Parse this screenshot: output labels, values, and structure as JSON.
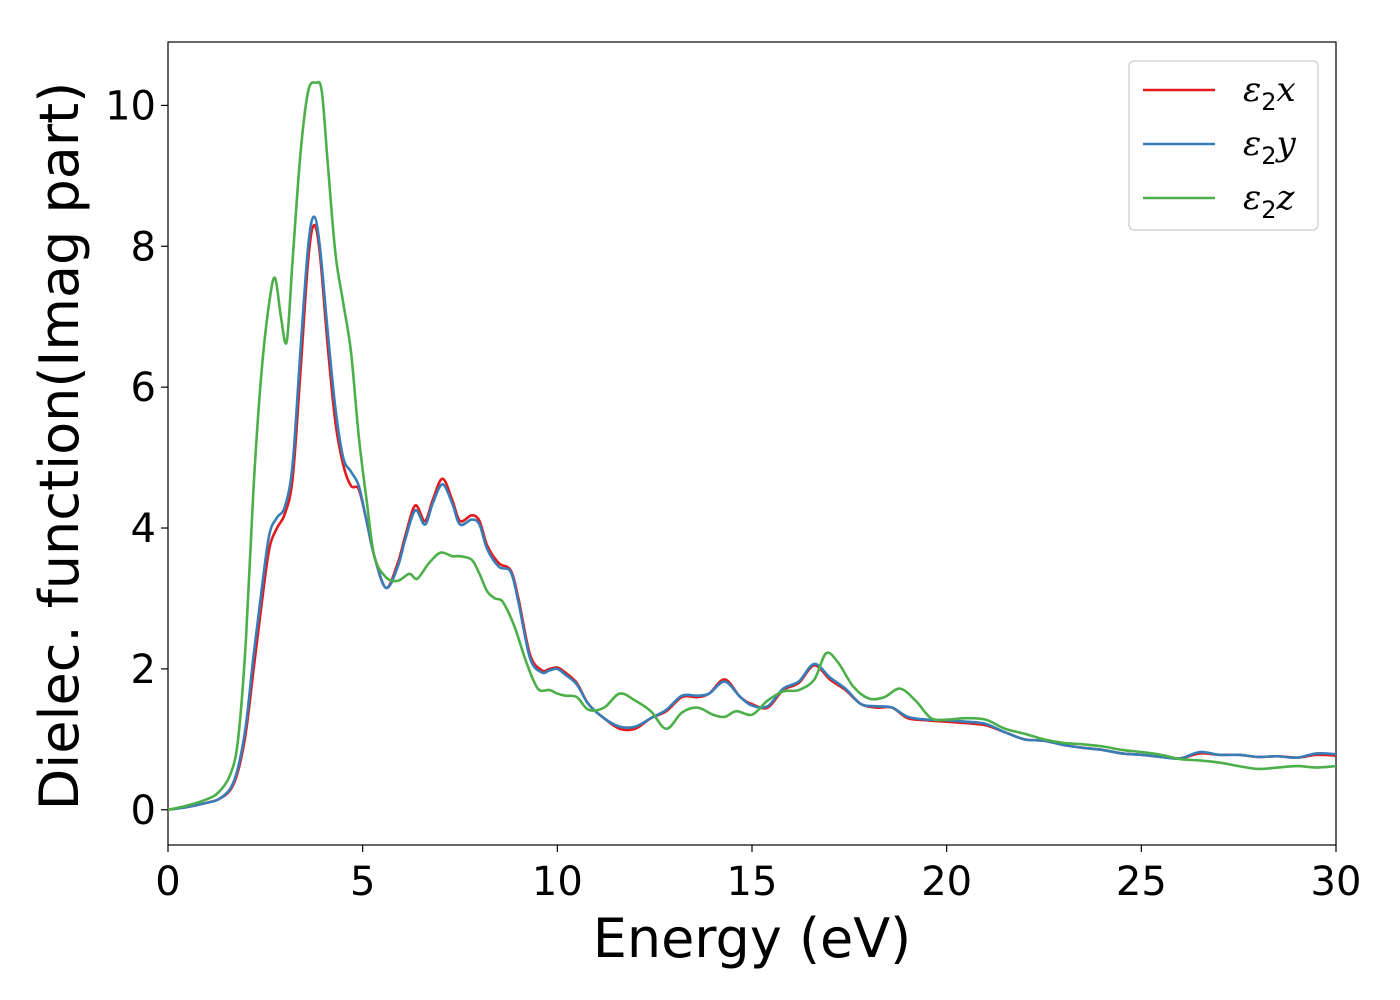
{
  "chart_data": {
    "type": "line",
    "title": "",
    "xlabel": "Energy (eV)",
    "ylabel": "Dielec. function(Imag part)",
    "xlim": [
      0,
      30
    ],
    "ylim": [
      -0.5,
      10.9
    ],
    "xticks": [
      0,
      5,
      10,
      15,
      20,
      25,
      30
    ],
    "yticks": [
      0,
      2,
      4,
      6,
      8,
      10
    ],
    "grid": false,
    "legend_position": "top-right",
    "series": [
      {
        "name": "ε2x",
        "color": "#e41a1c",
        "x": [
          0,
          0.5,
          1.0,
          1.3,
          1.6,
          1.8,
          2.0,
          2.2,
          2.4,
          2.6,
          2.8,
          3.0,
          3.2,
          3.4,
          3.6,
          3.75,
          3.9,
          4.1,
          4.3,
          4.5,
          4.7,
          4.9,
          5.1,
          5.3,
          5.6,
          5.9,
          6.1,
          6.35,
          6.6,
          6.8,
          7.05,
          7.3,
          7.5,
          7.8,
          8.0,
          8.2,
          8.5,
          8.8,
          9.0,
          9.3,
          9.6,
          9.8,
          10.0,
          10.2,
          10.5,
          10.8,
          11.2,
          11.6,
          12.0,
          12.4,
          12.8,
          13.2,
          13.6,
          13.9,
          14.3,
          14.7,
          15.0,
          15.4,
          15.8,
          16.2,
          16.6,
          17.0,
          17.4,
          17.8,
          18.2,
          18.6,
          19.0,
          19.5,
          20.0,
          20.5,
          21.0,
          21.5,
          22.0,
          22.5,
          23.0,
          23.5,
          24.0,
          24.5,
          25.0,
          25.5,
          26.0,
          26.5,
          27.0,
          27.5,
          28.0,
          28.5,
          29.0,
          29.5,
          30.0
        ],
        "y": [
          0.0,
          0.04,
          0.1,
          0.15,
          0.28,
          0.55,
          1.1,
          2.0,
          2.9,
          3.7,
          4.0,
          4.2,
          4.7,
          6.2,
          7.8,
          8.3,
          7.9,
          6.6,
          5.5,
          4.9,
          4.6,
          4.55,
          4.1,
          3.6,
          3.15,
          3.5,
          3.9,
          4.32,
          4.1,
          4.4,
          4.7,
          4.4,
          4.1,
          4.18,
          4.1,
          3.75,
          3.5,
          3.4,
          3.0,
          2.2,
          1.98,
          2.0,
          2.02,
          1.95,
          1.8,
          1.5,
          1.3,
          1.15,
          1.15,
          1.3,
          1.4,
          1.6,
          1.6,
          1.65,
          1.85,
          1.6,
          1.5,
          1.45,
          1.7,
          1.8,
          2.05,
          1.85,
          1.7,
          1.5,
          1.45,
          1.45,
          1.3,
          1.27,
          1.25,
          1.23,
          1.2,
          1.1,
          1.0,
          0.98,
          0.92,
          0.88,
          0.85,
          0.8,
          0.78,
          0.75,
          0.73,
          0.8,
          0.78,
          0.78,
          0.75,
          0.76,
          0.74,
          0.78,
          0.77
        ]
      },
      {
        "name": "ε2y",
        "color": "#377eb8",
        "x": [
          0,
          0.5,
          1.0,
          1.3,
          1.6,
          1.8,
          2.0,
          2.2,
          2.4,
          2.6,
          2.8,
          3.0,
          3.2,
          3.4,
          3.6,
          3.75,
          3.9,
          4.1,
          4.3,
          4.5,
          4.7,
          4.9,
          5.1,
          5.3,
          5.6,
          5.9,
          6.1,
          6.35,
          6.6,
          6.8,
          7.05,
          7.3,
          7.5,
          7.8,
          8.0,
          8.2,
          8.5,
          8.8,
          9.0,
          9.3,
          9.6,
          9.8,
          10.0,
          10.2,
          10.5,
          10.8,
          11.2,
          11.6,
          12.0,
          12.4,
          12.8,
          13.2,
          13.6,
          13.9,
          14.3,
          14.7,
          15.0,
          15.4,
          15.8,
          16.2,
          16.6,
          17.0,
          17.4,
          17.8,
          18.2,
          18.6,
          19.0,
          19.5,
          20.0,
          20.5,
          21.0,
          21.5,
          22.0,
          22.5,
          23.0,
          23.5,
          24.0,
          24.5,
          25.0,
          25.5,
          26.0,
          26.5,
          27.0,
          27.5,
          28.0,
          28.5,
          29.0,
          29.5,
          30.0
        ],
        "y": [
          0.0,
          0.04,
          0.1,
          0.15,
          0.3,
          0.6,
          1.2,
          2.2,
          3.1,
          3.9,
          4.15,
          4.3,
          4.9,
          6.5,
          8.0,
          8.42,
          8.0,
          6.8,
          5.7,
          5.0,
          4.8,
          4.6,
          4.1,
          3.6,
          3.15,
          3.45,
          3.85,
          4.25,
          4.05,
          4.35,
          4.62,
          4.35,
          4.05,
          4.12,
          4.05,
          3.7,
          3.45,
          3.38,
          2.95,
          2.15,
          1.95,
          1.98,
          2.0,
          1.92,
          1.78,
          1.5,
          1.3,
          1.18,
          1.18,
          1.3,
          1.42,
          1.62,
          1.62,
          1.65,
          1.82,
          1.6,
          1.48,
          1.47,
          1.72,
          1.82,
          2.07,
          1.88,
          1.72,
          1.5,
          1.47,
          1.45,
          1.32,
          1.28,
          1.27,
          1.25,
          1.22,
          1.1,
          1.0,
          0.98,
          0.92,
          0.88,
          0.85,
          0.8,
          0.78,
          0.75,
          0.73,
          0.82,
          0.78,
          0.78,
          0.75,
          0.76,
          0.74,
          0.8,
          0.79
        ]
      },
      {
        "name": "ε2z",
        "color": "#4daf4a",
        "x": [
          0,
          0.5,
          1.0,
          1.3,
          1.6,
          1.8,
          2.0,
          2.2,
          2.4,
          2.6,
          2.75,
          2.9,
          3.05,
          3.2,
          3.4,
          3.6,
          3.8,
          3.95,
          4.1,
          4.3,
          4.5,
          4.7,
          4.9,
          5.1,
          5.3,
          5.6,
          5.9,
          6.2,
          6.4,
          6.7,
          7.0,
          7.3,
          7.5,
          7.8,
          8.0,
          8.2,
          8.4,
          8.6,
          8.9,
          9.2,
          9.5,
          9.8,
          10.0,
          10.2,
          10.5,
          10.8,
          11.2,
          11.6,
          12.0,
          12.4,
          12.8,
          13.2,
          13.6,
          14.0,
          14.3,
          14.6,
          15.0,
          15.4,
          15.8,
          16.2,
          16.6,
          16.9,
          17.2,
          17.6,
          18.0,
          18.4,
          18.8,
          19.2,
          19.6,
          20.0,
          20.5,
          21.0,
          21.5,
          22.0,
          22.5,
          23.0,
          23.5,
          24.0,
          24.5,
          25.0,
          25.5,
          26.0,
          26.5,
          27.0,
          27.5,
          28.0,
          28.5,
          29.0,
          29.5,
          30.0
        ],
        "y": [
          0.0,
          0.06,
          0.15,
          0.25,
          0.5,
          1.0,
          2.4,
          4.6,
          6.2,
          7.2,
          7.55,
          7.0,
          6.65,
          7.8,
          9.3,
          10.2,
          10.32,
          10.2,
          9.2,
          7.9,
          7.2,
          6.5,
          5.3,
          4.4,
          3.6,
          3.3,
          3.25,
          3.35,
          3.28,
          3.5,
          3.65,
          3.6,
          3.6,
          3.55,
          3.35,
          3.1,
          3.0,
          2.95,
          2.6,
          2.1,
          1.72,
          1.7,
          1.65,
          1.62,
          1.6,
          1.42,
          1.45,
          1.65,
          1.55,
          1.4,
          1.15,
          1.38,
          1.45,
          1.35,
          1.32,
          1.4,
          1.35,
          1.55,
          1.68,
          1.7,
          1.85,
          2.22,
          2.1,
          1.75,
          1.58,
          1.6,
          1.72,
          1.55,
          1.3,
          1.28,
          1.3,
          1.28,
          1.15,
          1.08,
          1.0,
          0.95,
          0.93,
          0.9,
          0.85,
          0.82,
          0.78,
          0.72,
          0.7,
          0.67,
          0.62,
          0.58,
          0.6,
          0.62,
          0.6,
          0.62
        ]
      }
    ]
  }
}
